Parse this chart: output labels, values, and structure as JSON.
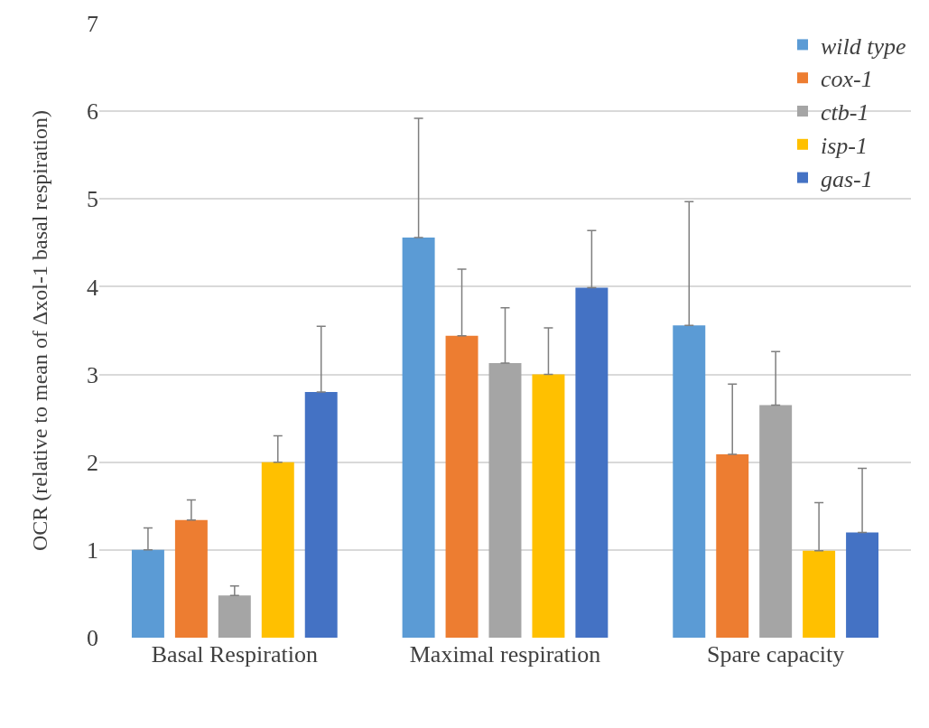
{
  "chart_data": {
    "type": "bar",
    "ylabel": "OCR (relative to mean of Δxol-1 basal respiration)",
    "categories": [
      "Basal Respiration",
      "Maximal respiration",
      "Spare capacity"
    ],
    "series": [
      {
        "name": "wild type",
        "color": "#5b9bd5",
        "values": [
          1.0,
          4.56,
          3.56
        ],
        "errors": [
          [
            1.0,
            1.25
          ],
          [
            4.56,
            5.92
          ],
          [
            3.56,
            4.97
          ]
        ]
      },
      {
        "name": "cox-1",
        "color": "#ed7d31",
        "values": [
          1.34,
          3.44,
          2.09
        ],
        "errors": [
          [
            1.34,
            1.57
          ],
          [
            3.44,
            4.2
          ],
          [
            2.09,
            2.89
          ]
        ]
      },
      {
        "name": "ctb-1",
        "color": "#a5a5a5",
        "values": [
          0.48,
          3.13,
          2.65
        ],
        "errors": [
          [
            0.48,
            0.59
          ],
          [
            3.13,
            3.76
          ],
          [
            2.65,
            3.26
          ]
        ]
      },
      {
        "name": "isp-1",
        "color": "#ffc000",
        "values": [
          2.0,
          3.0,
          0.99
        ],
        "errors": [
          [
            2.0,
            2.3
          ],
          [
            3.0,
            3.53
          ],
          [
            0.99,
            1.54
          ]
        ]
      },
      {
        "name": "gas-1",
        "color": "#4472c4",
        "values": [
          2.8,
          3.99,
          1.2
        ],
        "errors": [
          [
            2.8,
            3.55
          ],
          [
            3.99,
            4.64
          ],
          [
            1.2,
            1.93
          ]
        ]
      }
    ],
    "ylim": [
      0,
      7
    ],
    "yticks": [
      0,
      1,
      2,
      3,
      4,
      5,
      6,
      7
    ],
    "grid": "y",
    "legend": "top right"
  }
}
